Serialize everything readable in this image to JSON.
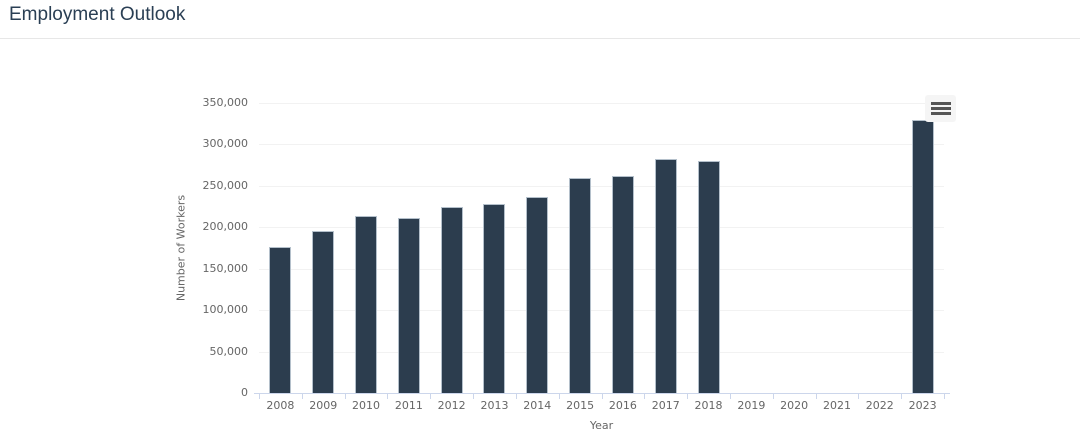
{
  "header": {
    "title": "Employment Outlook"
  },
  "chart": {
    "context_menu_icon": "hamburger-menu-icon",
    "colors": {
      "bar_fill": "#2c3d4e",
      "bar_border": "#b4c0cb",
      "gridline": "#f2f2f2",
      "axis_line": "#ccd6eb",
      "label_text": "#666666",
      "title_text": "#2a3f54",
      "menu_icon": "#555555",
      "menu_background": "#f5f5f5",
      "background": "#ffffff"
    }
  },
  "chart_data": {
    "type": "bar",
    "title": "Employment Outlook",
    "xlabel": "Year",
    "ylabel": "Number of Workers",
    "categories": [
      "2008",
      "2009",
      "2010",
      "2011",
      "2012",
      "2013",
      "2014",
      "2015",
      "2016",
      "2017",
      "2018",
      "2019",
      "2020",
      "2021",
      "2022",
      "2023"
    ],
    "values": [
      176000,
      195000,
      214000,
      211000,
      225000,
      228000,
      236000,
      260000,
      262000,
      282000,
      280000,
      0,
      0,
      0,
      0,
      330000
    ],
    "ylim": [
      0,
      350000
    ],
    "ytick_interval": 50000,
    "ytick_labels": [
      "0",
      "50,000",
      "100,000",
      "150,000",
      "200,000",
      "250,000",
      "300,000",
      "350,000"
    ],
    "grid": true,
    "legend": "none",
    "bar_gap_years": [
      "2019",
      "2020",
      "2021",
      "2022"
    ]
  }
}
